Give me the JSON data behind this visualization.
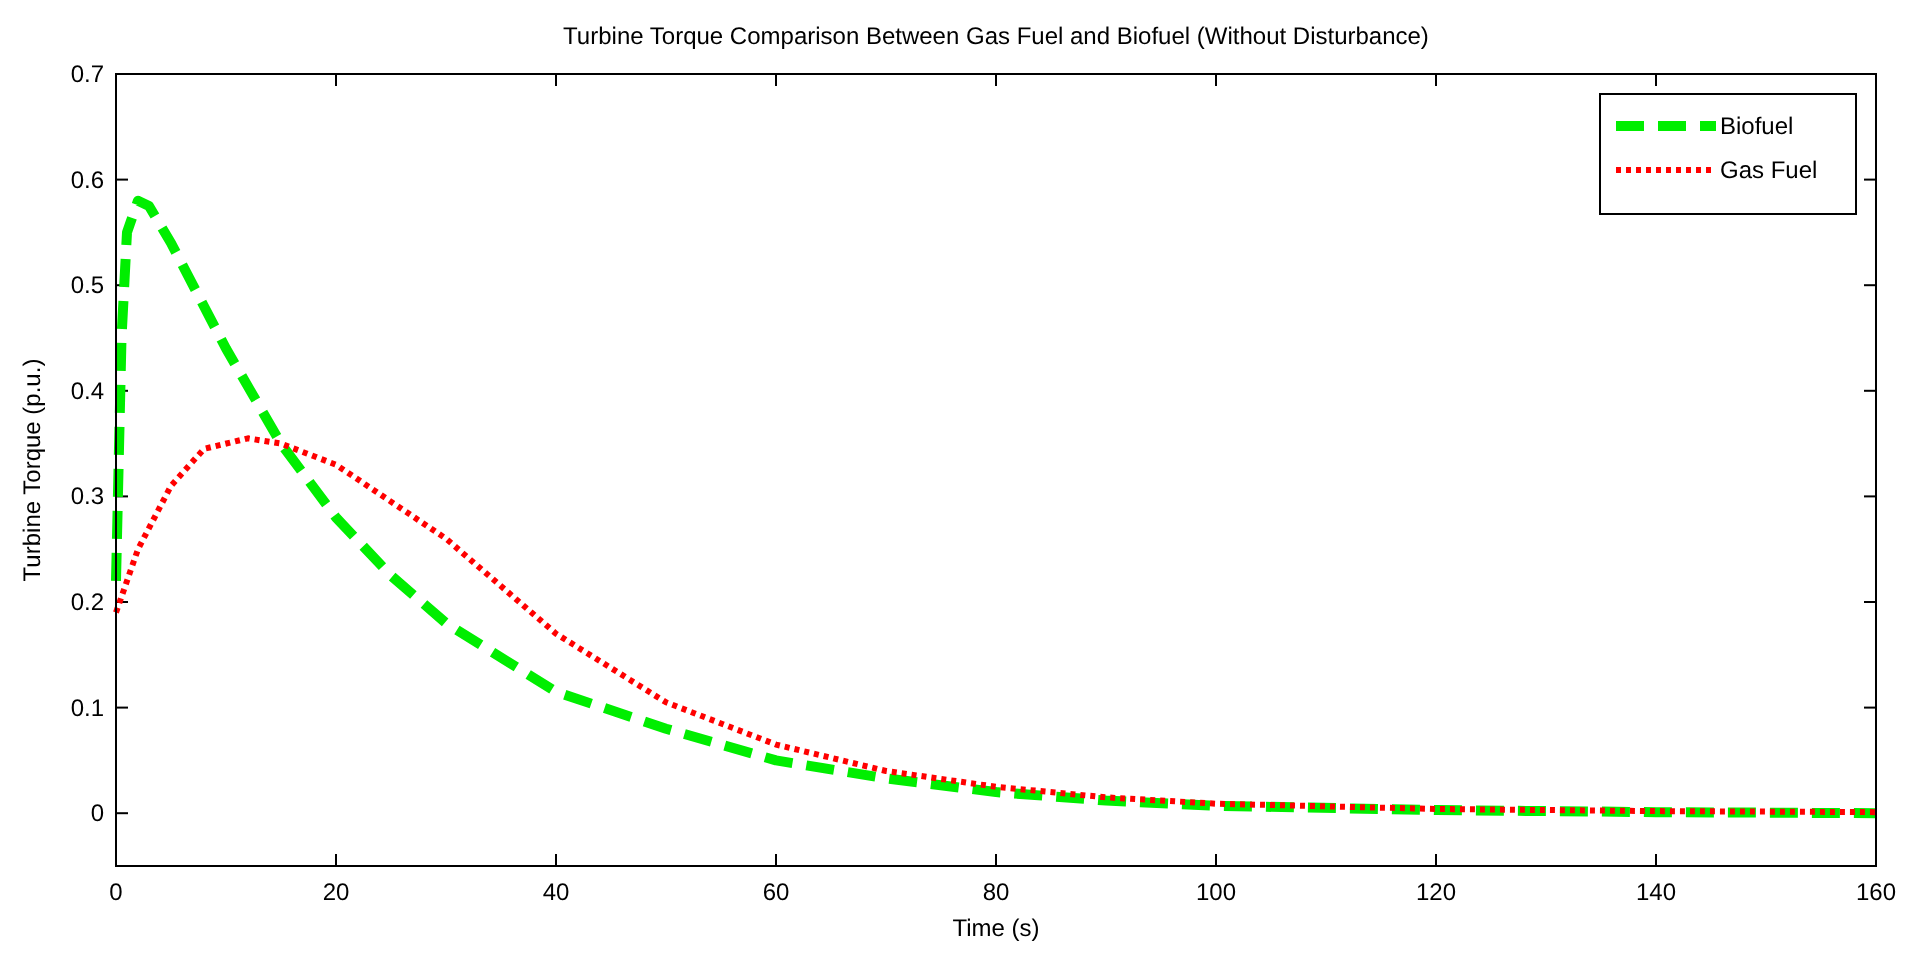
{
  "chart_data": {
    "type": "line",
    "title": "Turbine Torque Comparison Between Gas Fuel and Biofuel (Without Disturbance)",
    "xlabel": "Time (s)",
    "ylabel": "Turbine Torque (p.u.)",
    "xlim": [
      0,
      160
    ],
    "xticks": [
      0,
      20,
      40,
      60,
      80,
      100,
      120,
      140,
      160
    ],
    "ylim": [
      -0.05,
      0.7
    ],
    "yticks": [
      0,
      0.1,
      0.2,
      0.3,
      0.4,
      0.5,
      0.6,
      0.7
    ],
    "legend": "top right",
    "series": [
      {
        "name": "Biofuel",
        "color": "#00ee00",
        "line_style": "dashed",
        "x": [
          0,
          0.5,
          1,
          2,
          3,
          5,
          10,
          15,
          20,
          25,
          30,
          40,
          50,
          60,
          70,
          80,
          90,
          100,
          120,
          140,
          160
        ],
        "values": [
          0.22,
          0.45,
          0.55,
          0.58,
          0.575,
          0.54,
          0.44,
          0.35,
          0.28,
          0.225,
          0.18,
          0.115,
          0.08,
          0.05,
          0.033,
          0.02,
          0.012,
          0.007,
          0.003,
          0.001,
          0
        ]
      },
      {
        "name": "Gas Fuel",
        "color": "#ff0000",
        "line_style": "dotted",
        "x": [
          0,
          2,
          5,
          8,
          12,
          15,
          20,
          30,
          40,
          50,
          60,
          70,
          80,
          90,
          100,
          120,
          140,
          160
        ],
        "values": [
          0.19,
          0.25,
          0.31,
          0.345,
          0.355,
          0.35,
          0.33,
          0.26,
          0.17,
          0.105,
          0.065,
          0.04,
          0.025,
          0.015,
          0.009,
          0.004,
          0.002,
          0.001
        ]
      }
    ]
  }
}
